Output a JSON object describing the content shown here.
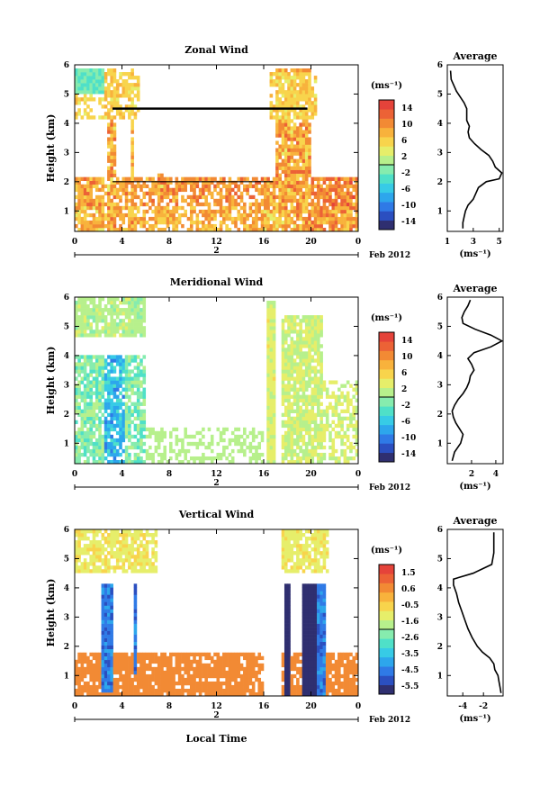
{
  "figure": {
    "bottom_xlabel": "Local Time"
  },
  "chart_data": [
    {
      "type": "heatmap",
      "title": "Zonal Wind",
      "ylabel": "Height (km)",
      "xlabel": "",
      "x_ticks": [
        "0",
        "4",
        "8",
        "12",
        "16",
        "20",
        "0"
      ],
      "xlim": [
        0,
        24
      ],
      "ylim": [
        0.3,
        6
      ],
      "y_ticks": [
        "1",
        "2",
        "3",
        "4",
        "5",
        "6"
      ],
      "date_day": "2",
      "date_label": "Feb 2012",
      "colorbar": {
        "unit": "(ms⁻¹)",
        "ticks": [
          "14",
          "10",
          "6",
          "2",
          "-2",
          "-6",
          "-10",
          "-14"
        ],
        "range": [
          -16,
          16
        ]
      },
      "scheme": "zonal",
      "profile": {
        "title": "Average",
        "xlabel": "(ms⁻¹)",
        "x_ticks": [
          "1",
          "3",
          "5"
        ],
        "xlim": [
          1,
          5.3
        ],
        "y_ticks": [
          "1",
          "2",
          "3",
          "4",
          "5",
          "6"
        ],
        "points": [
          [
            2.2,
            0.4
          ],
          [
            2.2,
            0.6
          ],
          [
            2.3,
            0.8
          ],
          [
            2.4,
            1.0
          ],
          [
            2.6,
            1.2
          ],
          [
            3.0,
            1.4
          ],
          [
            3.2,
            1.6
          ],
          [
            3.4,
            1.8
          ],
          [
            4.0,
            2.0
          ],
          [
            5.0,
            2.1
          ],
          [
            5.2,
            2.3
          ],
          [
            4.7,
            2.5
          ],
          [
            4.5,
            2.7
          ],
          [
            4.2,
            2.9
          ],
          [
            3.6,
            3.1
          ],
          [
            3.1,
            3.3
          ],
          [
            2.7,
            3.5
          ],
          [
            2.6,
            3.7
          ],
          [
            2.7,
            3.9
          ],
          [
            2.5,
            4.1
          ],
          [
            2.5,
            4.3
          ],
          [
            2.5,
            4.5
          ],
          [
            2.3,
            4.7
          ],
          [
            2.0,
            4.9
          ],
          [
            1.7,
            5.1
          ],
          [
            1.5,
            5.3
          ],
          [
            1.3,
            5.5
          ],
          [
            1.25,
            5.8
          ]
        ]
      }
    },
    {
      "type": "heatmap",
      "title": "Meridional Wind",
      "ylabel": "Height (km)",
      "xlabel": "",
      "x_ticks": [
        "0",
        "4",
        "8",
        "12",
        "16",
        "20",
        "0"
      ],
      "xlim": [
        0,
        24
      ],
      "ylim": [
        0.3,
        6
      ],
      "y_ticks": [
        "1",
        "2",
        "3",
        "4",
        "5",
        "6"
      ],
      "date_day": "2",
      "date_label": "Feb 2012",
      "colorbar": {
        "unit": "(ms⁻¹)",
        "ticks": [
          "14",
          "10",
          "6",
          "2",
          "-2",
          "-6",
          "-10",
          "-14"
        ],
        "range": [
          -16,
          16
        ]
      },
      "scheme": "meridional",
      "profile": {
        "title": "Average",
        "xlabel": "(ms⁻¹)",
        "x_ticks": [
          "2",
          "4"
        ],
        "xlim": [
          0,
          4.6
        ],
        "y_ticks": [
          "1",
          "2",
          "3",
          "4",
          "5",
          "6"
        ],
        "points": [
          [
            0.4,
            0.4
          ],
          [
            0.6,
            0.7
          ],
          [
            1.1,
            1.0
          ],
          [
            1.3,
            1.3
          ],
          [
            1.0,
            1.5
          ],
          [
            0.7,
            1.7
          ],
          [
            0.5,
            1.9
          ],
          [
            0.4,
            2.1
          ],
          [
            0.6,
            2.3
          ],
          [
            0.9,
            2.5
          ],
          [
            1.3,
            2.7
          ],
          [
            1.6,
            2.9
          ],
          [
            1.8,
            3.1
          ],
          [
            1.9,
            3.3
          ],
          [
            2.2,
            3.5
          ],
          [
            2.0,
            3.7
          ],
          [
            1.7,
            3.9
          ],
          [
            2.2,
            4.1
          ],
          [
            3.6,
            4.3
          ],
          [
            4.5,
            4.5
          ],
          [
            3.6,
            4.7
          ],
          [
            2.3,
            4.9
          ],
          [
            1.3,
            5.1
          ],
          [
            1.2,
            5.3
          ],
          [
            1.4,
            5.5
          ],
          [
            1.7,
            5.7
          ],
          [
            1.9,
            5.9
          ]
        ]
      }
    },
    {
      "type": "heatmap",
      "title": "Vertical Wind",
      "ylabel": "Height (km)",
      "xlabel": "",
      "x_ticks": [
        "0",
        "4",
        "8",
        "12",
        "16",
        "20",
        "0"
      ],
      "xlim": [
        0,
        24
      ],
      "ylim": [
        0.3,
        6
      ],
      "y_ticks": [
        "1",
        "2",
        "3",
        "4",
        "5",
        "6"
      ],
      "date_day": "2",
      "date_label": "Feb 2012",
      "colorbar": {
        "unit": "(ms⁻¹)",
        "ticks": [
          "1.5",
          "0.6",
          "-0.5",
          "-1.6",
          "-2.6",
          "-3.5",
          "-4.5",
          "-5.5"
        ],
        "range": [
          -6,
          2
        ]
      },
      "scheme": "vertical",
      "profile": {
        "title": "Average",
        "xlabel": "(ms⁻¹)",
        "x_ticks": [
          "-4",
          "-2"
        ],
        "xlim": [
          -5.5,
          -0.1
        ],
        "y_ticks": [
          "1",
          "2",
          "3",
          "4",
          "5",
          "6"
        ],
        "points": [
          [
            -0.3,
            0.4
          ],
          [
            -0.4,
            0.6
          ],
          [
            -0.5,
            0.8
          ],
          [
            -0.6,
            1.0
          ],
          [
            -0.9,
            1.2
          ],
          [
            -1.0,
            1.4
          ],
          [
            -1.4,
            1.6
          ],
          [
            -2.1,
            1.8
          ],
          [
            -2.6,
            2.0
          ],
          [
            -3.1,
            2.3
          ],
          [
            -3.5,
            2.6
          ],
          [
            -3.8,
            2.9
          ],
          [
            -4.1,
            3.2
          ],
          [
            -4.4,
            3.5
          ],
          [
            -4.6,
            3.8
          ],
          [
            -4.9,
            4.1
          ],
          [
            -4.9,
            4.3
          ],
          [
            -3.0,
            4.5
          ],
          [
            -1.2,
            4.8
          ],
          [
            -1.0,
            5.2
          ],
          [
            -1.0,
            5.6
          ],
          [
            -1.0,
            5.9
          ]
        ]
      }
    }
  ]
}
